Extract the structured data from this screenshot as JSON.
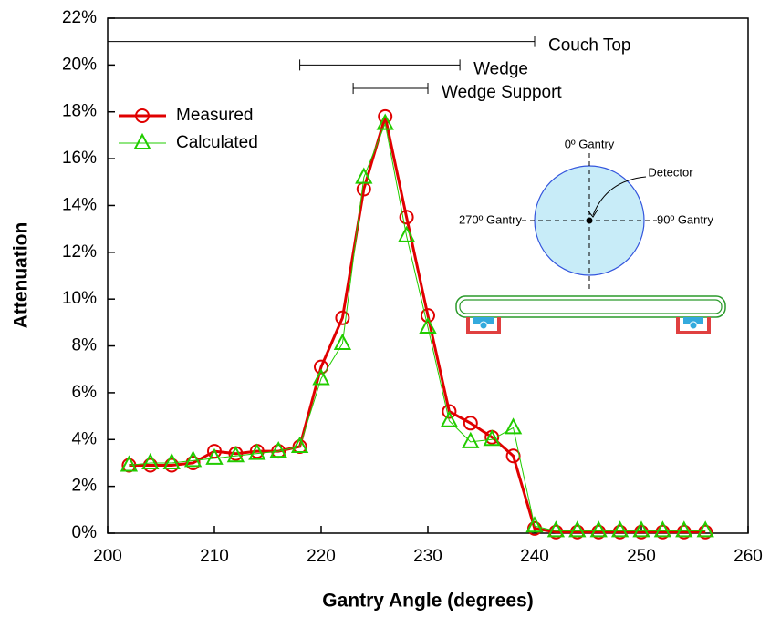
{
  "chart_data": {
    "type": "line",
    "xlabel": "Gantry Angle (degrees)",
    "ylabel": "Attenuation",
    "x": [
      202,
      204,
      206,
      208,
      210,
      212,
      214,
      216,
      218,
      220,
      222,
      224,
      226,
      228,
      230,
      232,
      234,
      236,
      238,
      240,
      242,
      244,
      246,
      248,
      250,
      252,
      254,
      256
    ],
    "series": [
      {
        "name": "Measured",
        "color": "#e00000",
        "marker": "circle",
        "values": [
          2.9,
          2.9,
          2.9,
          3.0,
          3.5,
          3.4,
          3.5,
          3.5,
          3.7,
          7.1,
          9.2,
          14.7,
          17.8,
          13.5,
          9.3,
          5.2,
          4.7,
          4.1,
          3.3,
          0.2,
          0.05,
          0.05,
          0.05,
          0.05,
          0.05,
          0.05,
          0.05,
          0.05
        ]
      },
      {
        "name": "Calculated",
        "color": "#22cc00",
        "marker": "triangle",
        "values": [
          2.9,
          3.0,
          3.0,
          3.1,
          3.2,
          3.3,
          3.4,
          3.5,
          3.7,
          6.6,
          8.1,
          15.2,
          17.5,
          12.7,
          8.8,
          4.8,
          3.9,
          4.0,
          4.5,
          0.3,
          0.1,
          0.1,
          0.1,
          0.1,
          0.1,
          0.1,
          0.1,
          0.1
        ]
      }
    ],
    "xlim": [
      200,
      260
    ],
    "xticks": [
      200,
      210,
      220,
      230,
      240,
      250,
      260
    ],
    "ylim": [
      0,
      22
    ],
    "yticks": [
      {
        "value": 0,
        "label": "0%"
      },
      {
        "value": 2,
        "label": "2%"
      },
      {
        "value": 4,
        "label": "4%"
      },
      {
        "value": 6,
        "label": "6%"
      },
      {
        "value": 8,
        "label": "8%"
      },
      {
        "value": 10,
        "label": "10%"
      },
      {
        "value": 12,
        "label": "12%"
      },
      {
        "value": 14,
        "label": "14%"
      },
      {
        "value": 16,
        "label": "16%"
      },
      {
        "value": 18,
        "label": "18%"
      },
      {
        "value": 20,
        "label": "20%"
      },
      {
        "value": 22,
        "label": "22%"
      }
    ],
    "legend": "upper left",
    "annotations": [
      {
        "text": "Couch Top",
        "x": [
          200,
          240
        ],
        "y": 21
      },
      {
        "text": "Wedge",
        "x": [
          218,
          233
        ],
        "y": 20
      },
      {
        "text": "Wedge Support",
        "x": [
          223,
          230
        ],
        "y": 19
      }
    ],
    "inset": {
      "top": "0º Gantry",
      "detector": "Detector",
      "left": "270º Gantry",
      "right": "90º Gantry"
    }
  }
}
